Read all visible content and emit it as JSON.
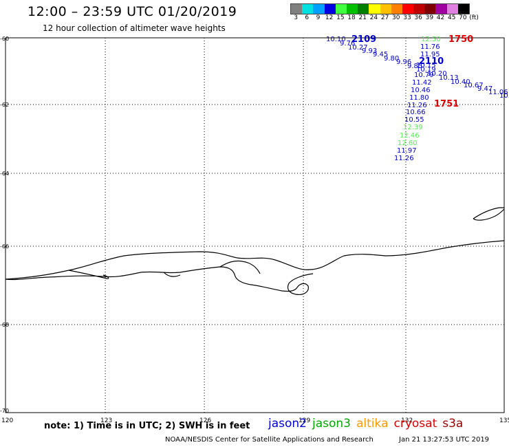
{
  "title": "12:00 – 23:59 UTC 01/20/2019",
  "subtitle": "12 hour collection of altimeter wave heights",
  "colorbar": {
    "unit": "(ft)",
    "ticks": [
      "3",
      "6",
      "9",
      "12",
      "15",
      "18",
      "21",
      "24",
      "27",
      "30",
      "33",
      "36",
      "39",
      "42",
      "45",
      "70"
    ],
    "colors": [
      "#808080",
      "#00e0e0",
      "#00a0ff",
      "#0000e0",
      "#40ff40",
      "#00c000",
      "#008000",
      "#ffff00",
      "#ffc000",
      "#ff8000",
      "#ff0000",
      "#c00000",
      "#800000",
      "#a000a0",
      "#e080e0",
      "#000000"
    ]
  },
  "lat_labels": [
    "-60",
    "-62",
    "-64",
    "-66",
    "-68",
    "-70"
  ],
  "lon_labels": [
    "120",
    "123",
    "126",
    "129",
    "132",
    "135"
  ],
  "passes": {
    "pass_2109": {
      "time": "2109",
      "color": "#0000cc",
      "values": [
        "10.10",
        "9.76",
        "10.27",
        "9.93",
        "9.45",
        "9.80",
        "9.96",
        "9.85",
        "10.19",
        "10.79",
        "10.20",
        "10.13",
        "10.40",
        "10.67",
        "9.47",
        "11.06",
        "10."
      ]
    },
    "pass_2110": {
      "time": "2110",
      "color": "#0000cc",
      "values": [
        "11.76",
        "11.95",
        "10.15",
        "11.42",
        "10.46",
        "11.80",
        "11.26",
        "10.66",
        "10.55",
        "11.97",
        "11.26"
      ]
    },
    "pass_1750": {
      "time": "1750",
      "color": "#dd0000"
    },
    "pass_1751": {
      "time": "1751",
      "color": "#dd0000"
    },
    "altika": {
      "color": "#55ee55",
      "values": [
        "12.50",
        "12.39",
        "12.46",
        "12.60"
      ]
    }
  },
  "note": "note: 1) Time is in UTC; 2) SWH is in feet",
  "legend": [
    {
      "name": "jason2",
      "color": "#0000dd"
    },
    {
      "name": "jason3",
      "color": "#00aa00"
    },
    {
      "name": "altika",
      "color": "#ff9900"
    },
    {
      "name": "cryosat",
      "color": "#dd0000"
    },
    {
      "name": "s3a",
      "color": "#990000"
    }
  ],
  "footer": "NOAA/NESDIS Center for Satellite Applications and Research",
  "footer_date": "Jan 21 13:27:53 UTC 2019"
}
